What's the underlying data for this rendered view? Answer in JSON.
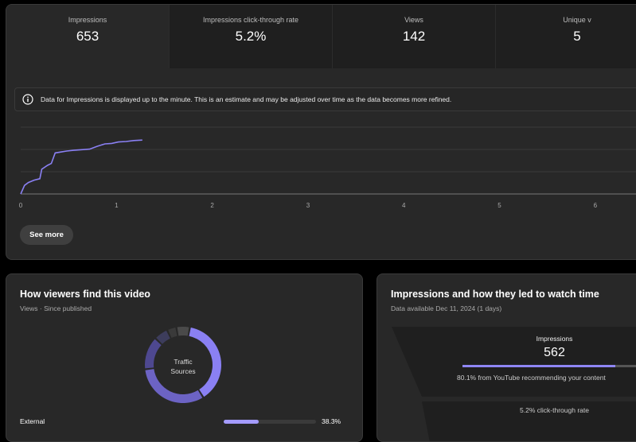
{
  "metrics": [
    {
      "label": "Impressions",
      "value": "653"
    },
    {
      "label": "Impressions click-through rate",
      "value": "5.2%"
    },
    {
      "label": "Views",
      "value": "142"
    },
    {
      "label": "Unique v",
      "value": "5"
    }
  ],
  "info_banner": {
    "icon": "info-icon",
    "text": "Data for Impressions is displayed up to the minute. This is an estimate and may be adjusted over time as the data becomes more refined."
  },
  "chart_data": {
    "type": "line",
    "x_ticks": [
      "0",
      "1",
      "2",
      "3",
      "4",
      "5",
      "6"
    ],
    "xlim": [
      0,
      6.5
    ],
    "ylim": [
      0,
      700
    ],
    "gridlines": 3,
    "series": [
      {
        "color": "#8a80f3",
        "x": [
          0,
          0.04,
          0.08,
          0.14,
          0.2,
          0.22,
          0.28,
          0.32,
          0.36,
          0.42,
          0.48,
          0.55,
          0.65,
          0.72,
          0.8,
          0.88,
          0.95,
          1.02,
          1.1,
          1.18,
          1.27
        ],
        "y": [
          0,
          90,
          120,
          145,
          160,
          260,
          300,
          320,
          430,
          440,
          450,
          458,
          465,
          470,
          500,
          525,
          530,
          545,
          550,
          560,
          565
        ]
      }
    ]
  },
  "see_more_label": "See more",
  "traffic": {
    "title": "How viewers find this video",
    "subtitle": "Views · Since published",
    "donut_label_line1": "Traffic",
    "donut_label_line2": "Sources",
    "donut_segments": [
      {
        "value": 38.3,
        "color": "#8a80f3"
      },
      {
        "value": 32,
        "color": "#6c63c4"
      },
      {
        "value": 14,
        "color": "#4e4890"
      },
      {
        "value": 6,
        "color": "#3d3d5c"
      },
      {
        "value": 4,
        "color": "#3a3a3a"
      },
      {
        "value": 5.7,
        "color": "#4a4a4a"
      }
    ],
    "row": {
      "label": "External",
      "value": "38.3%",
      "fraction": 0.383
    }
  },
  "impressions_funnel": {
    "title": "Impressions and how they led to watch time",
    "subtitle": "Data available Dec 11, 2024 (1 days)",
    "label": "Impressions",
    "value": "562",
    "bar_fraction": 0.801,
    "note": "80.1% from YouTube recommending your content",
    "ctr": "5.2% click-through rate"
  }
}
